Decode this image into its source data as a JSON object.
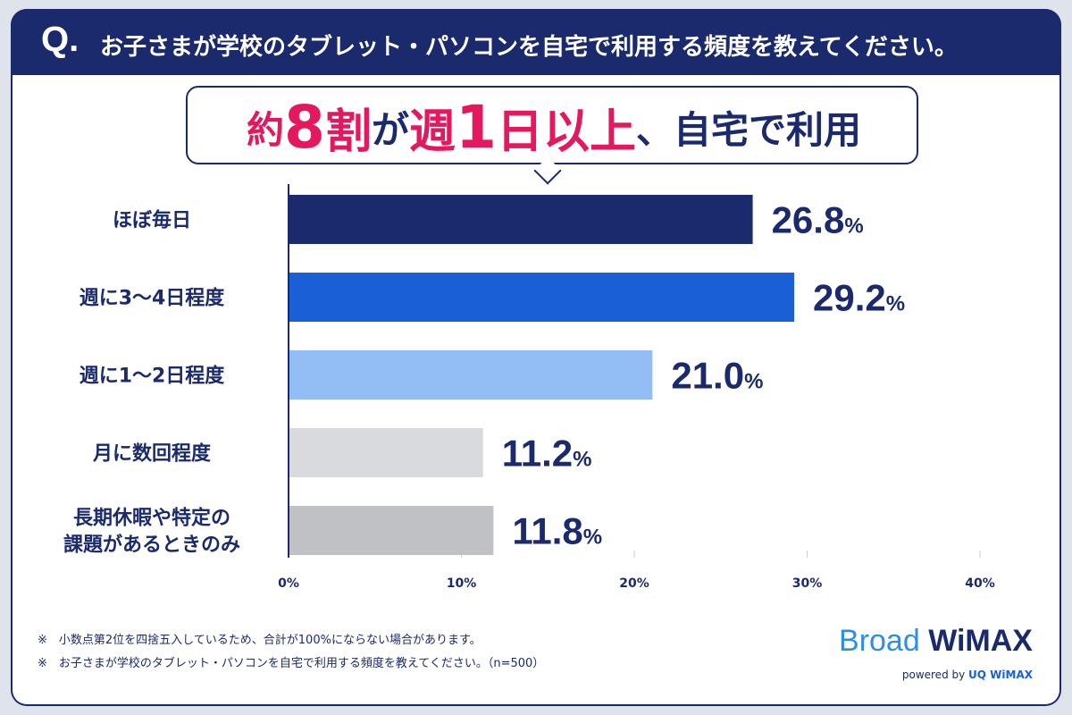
{
  "header": {
    "q_mark": "Q.",
    "question": "お子さまが学校のタブレット・パソコンを自宅で利用する頻度を教えてください。"
  },
  "headline": {
    "p1": "約",
    "p2": "8",
    "p3": "割",
    "p4": "が",
    "p5": "週",
    "p6": "1",
    "p7": "日以上",
    "p8": "、自宅で利用"
  },
  "colors": {
    "navy": "#1a2a6c",
    "accent_red": "#e3185f"
  },
  "chart_data": {
    "type": "bar",
    "orientation": "horizontal",
    "categories": [
      [
        "ほぼ毎日"
      ],
      [
        "週に3～4日程度"
      ],
      [
        "週に1～2日程度"
      ],
      [
        "月に数回程度"
      ],
      [
        "長期休暇や特定の",
        "課題があるときのみ"
      ]
    ],
    "values": [
      26.8,
      29.2,
      21.0,
      11.2,
      11.8
    ],
    "value_labels": [
      "26.8",
      "29.2",
      "21.0",
      "11.2",
      "11.8"
    ],
    "value_unit": "%",
    "bar_colors": [
      "#1a2a6c",
      "#1a5fd6",
      "#93bdf5",
      "#d8dade",
      "#bfc1c5"
    ],
    "xlim": [
      0,
      40
    ],
    "xticks": [
      0,
      10,
      20,
      30,
      40
    ],
    "xtick_labels": [
      "0%",
      "10%",
      "20%",
      "30%",
      "40%"
    ],
    "grid": true,
    "legend": "none"
  },
  "notes": [
    "※　小数点第2位を四捨五入しているため、合計が100%にならない場合があります。",
    "※　お子さまが学校のタブレット・パソコンを自宅で利用する頻度を教えてください。（n=500）"
  ],
  "brand": {
    "name_part1": "Broad",
    "name_part2": " WiMAX",
    "powered_by": "powered by ",
    "powered_brand": "UQ WiMAX"
  }
}
